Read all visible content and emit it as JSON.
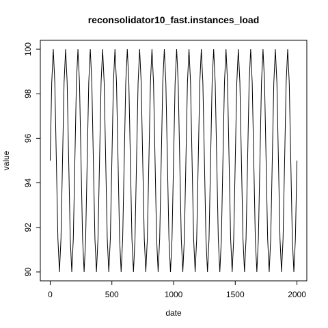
{
  "chart_data": {
    "type": "line",
    "title": "reconsolidator10_fast.instances_load",
    "xlabel": "date",
    "ylabel": "value",
    "x": [
      0,
      12.5,
      25,
      37.5,
      50,
      62.5,
      75,
      87.5,
      100,
      112.5,
      125,
      137.5,
      150,
      162.5,
      175,
      187.5,
      200,
      212.5,
      225,
      237.5,
      250,
      262.5,
      275,
      287.5,
      300,
      312.5,
      325,
      337.5,
      350,
      362.5,
      375,
      387.5,
      400,
      412.5,
      425,
      437.5,
      450,
      462.5,
      475,
      487.5,
      500,
      512.5,
      525,
      537.5,
      550,
      562.5,
      575,
      587.5,
      600,
      612.5,
      625,
      637.5,
      650,
      662.5,
      675,
      687.5,
      700,
      712.5,
      725,
      737.5,
      750,
      762.5,
      775,
      787.5,
      800,
      812.5,
      825,
      837.5,
      850,
      862.5,
      875,
      887.5,
      900,
      912.5,
      925,
      937.5,
      950,
      962.5,
      975,
      987.5,
      1000,
      1012.5,
      1025,
      1037.5,
      1050,
      1062.5,
      1075,
      1087.5,
      1100,
      1112.5,
      1125,
      1137.5,
      1150,
      1162.5,
      1175,
      1187.5,
      1200,
      1212.5,
      1225,
      1237.5,
      1250,
      1262.5,
      1275,
      1287.5,
      1300,
      1312.5,
      1325,
      1337.5,
      1350,
      1362.5,
      1375,
      1387.5,
      1400,
      1412.5,
      1425,
      1437.5,
      1450,
      1462.5,
      1475,
      1487.5,
      1500,
      1512.5,
      1525,
      1537.5,
      1550,
      1562.5,
      1575,
      1587.5,
      1600,
      1612.5,
      1625,
      1637.5,
      1650,
      1662.5,
      1675,
      1687.5,
      1700,
      1712.5,
      1725,
      1737.5,
      1750,
      1762.5,
      1775,
      1787.5,
      1800,
      1812.5,
      1825,
      1837.5,
      1850,
      1862.5,
      1875,
      1887.5,
      1900,
      1912.5,
      1925,
      1937.5,
      1950,
      1962.5,
      1975,
      1987.5,
      2000
    ],
    "series": [
      {
        "name": "value",
        "color": "#000000",
        "values": [
          95,
          98.5,
          100,
          98.5,
          95,
          91.5,
          90,
          91.5,
          95,
          98.5,
          100,
          98.5,
          95,
          91.5,
          90,
          91.5,
          95,
          98.5,
          100,
          98.5,
          95,
          91.5,
          90,
          91.5,
          95,
          98.5,
          100,
          98.5,
          95,
          91.5,
          90,
          91.5,
          95,
          98.5,
          100,
          98.5,
          95,
          91.5,
          90,
          91.5,
          95,
          98.5,
          100,
          98.5,
          95,
          91.5,
          90,
          91.5,
          95,
          98.5,
          100,
          98.5,
          95,
          91.5,
          90,
          91.5,
          95,
          98.5,
          100,
          98.5,
          95,
          91.5,
          90,
          91.5,
          95,
          98.5,
          100,
          98.5,
          95,
          91.5,
          90,
          91.5,
          95,
          98.5,
          100,
          98.5,
          95,
          91.5,
          90,
          91.5,
          95,
          98.5,
          100,
          98.5,
          95,
          91.5,
          90,
          91.5,
          95,
          98.5,
          100,
          98.5,
          95,
          91.5,
          90,
          91.5,
          95,
          98.5,
          100,
          98.5,
          95,
          91.5,
          90,
          91.5,
          95,
          98.5,
          100,
          98.5,
          95,
          91.5,
          90,
          91.5,
          95,
          98.5,
          100,
          98.5,
          95,
          91.5,
          90,
          91.5,
          95,
          98.5,
          100,
          98.5,
          95,
          91.5,
          90,
          91.5,
          95,
          98.5,
          100,
          98.5,
          95,
          91.5,
          90,
          91.5,
          95,
          98.5,
          100,
          98.5,
          95,
          91.5,
          90,
          91.5,
          95,
          98.5,
          100,
          98.5,
          95,
          91.5,
          90,
          91.5,
          95,
          98.5,
          100,
          98.5,
          95,
          91.5,
          90,
          91.5,
          95
        ]
      }
    ],
    "xlim": [
      -80,
      2080
    ],
    "ylim": [
      89.6,
      100.4
    ],
    "xticks": [
      0,
      500,
      1000,
      1500,
      2000
    ],
    "yticks": [
      90,
      92,
      94,
      96,
      98,
      100
    ]
  }
}
